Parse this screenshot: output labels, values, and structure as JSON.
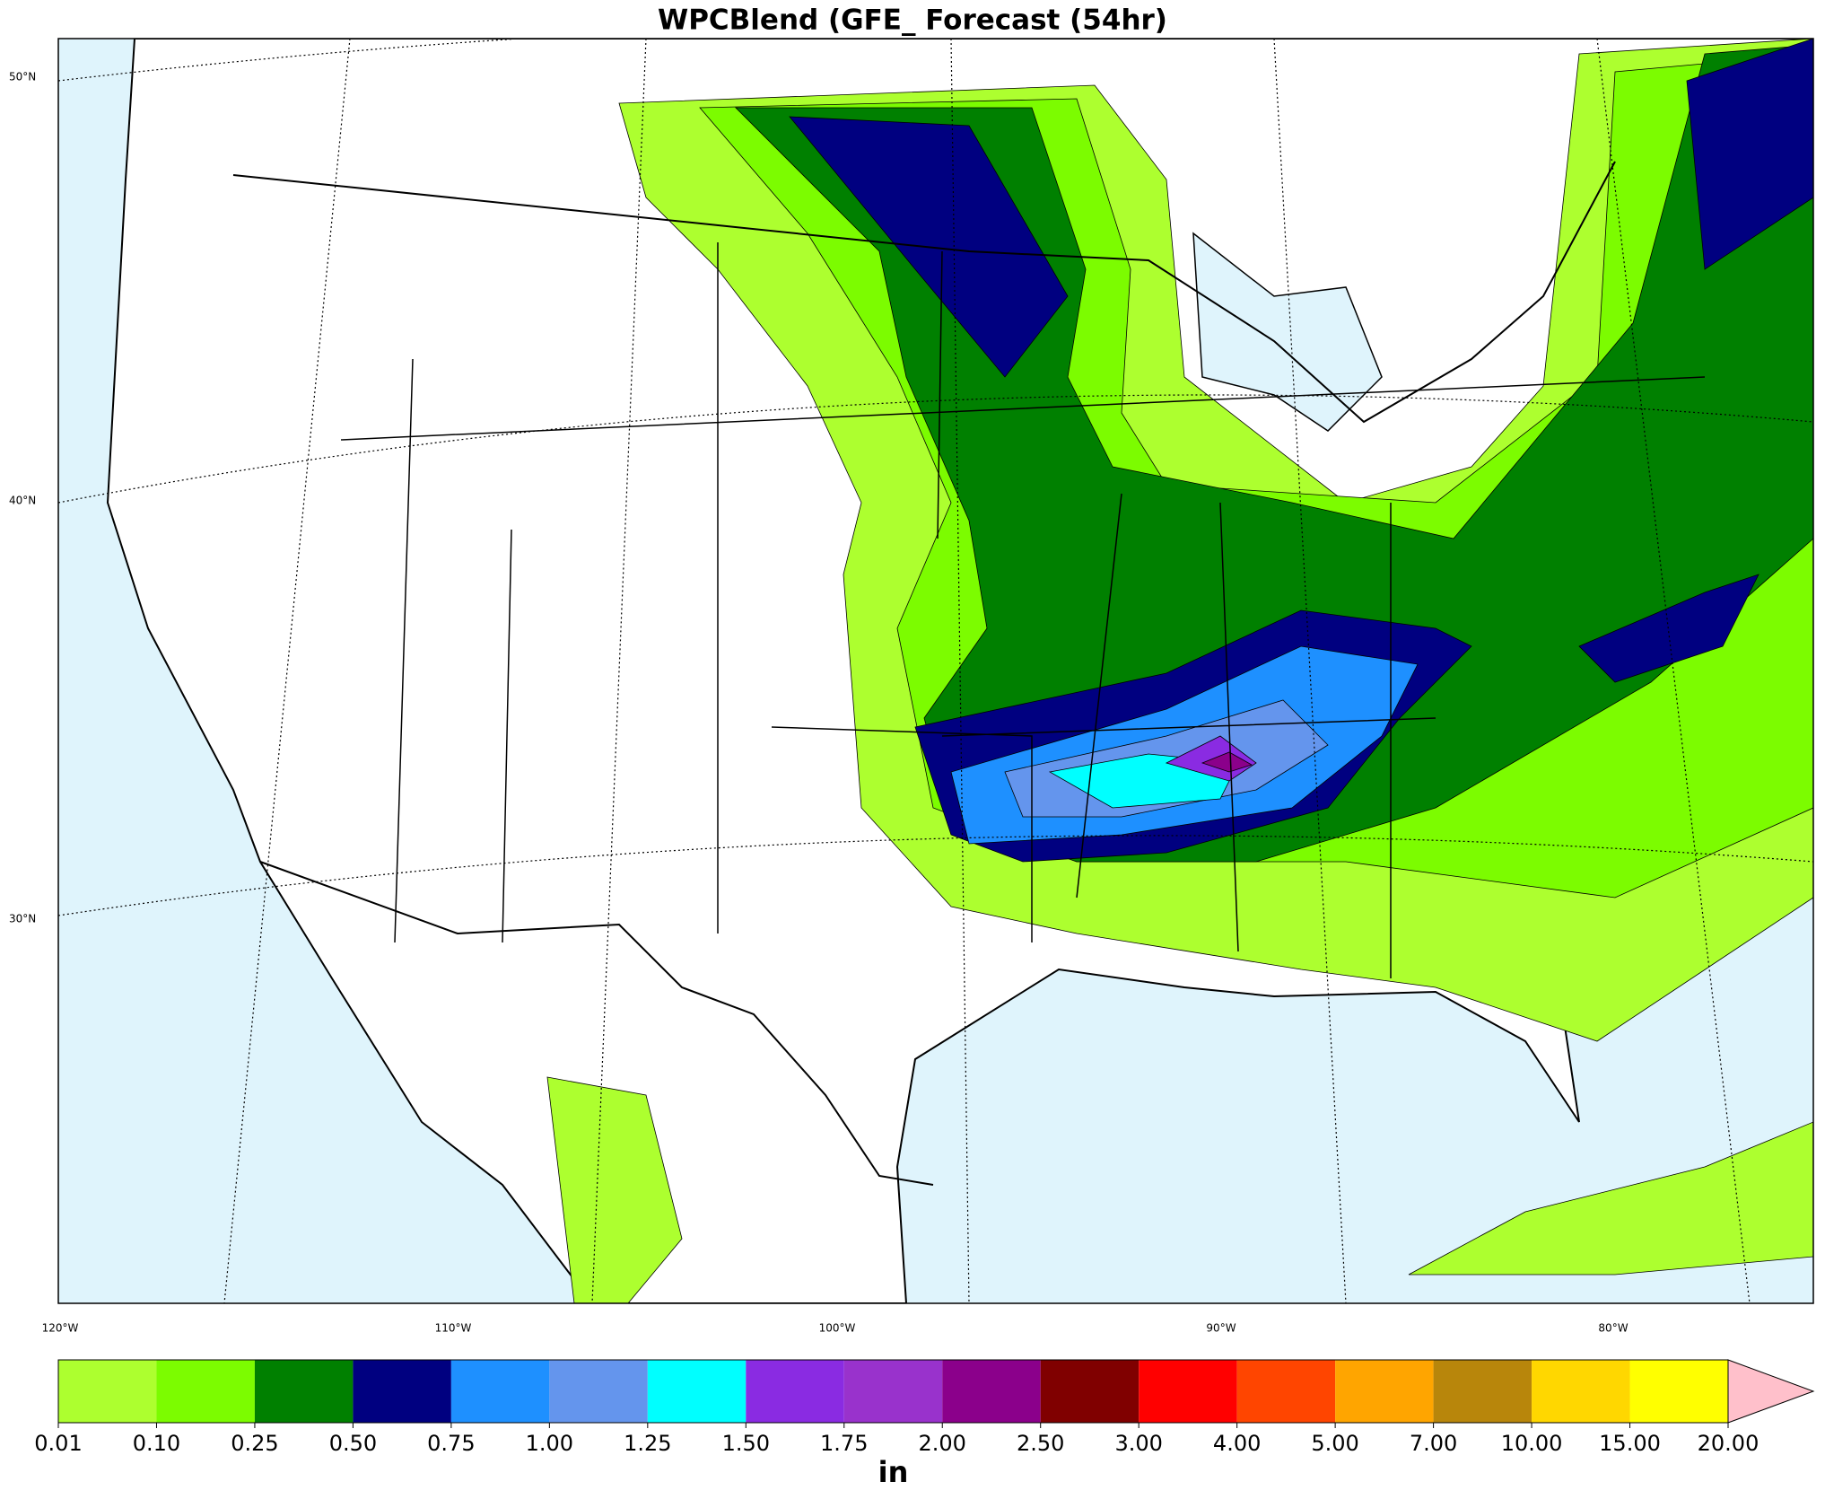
{
  "map": {
    "title": "WPCBlend (GFE_ Forecast (54hr)",
    "lat_labels": [
      "50°N",
      "40°N",
      "30°N"
    ],
    "lon_labels": [
      "120°W",
      "110°W",
      "100°W",
      "90°W",
      "80°W"
    ],
    "colorbar": {
      "levels": [
        0.01,
        {
          "value": 0.1,
          "label": "0.10"
        },
        {
          "value": 0.25,
          "label": "0.25"
        },
        {
          "value": 0.5,
          "label": "0.50"
        },
        {
          "value": 0.75,
          "label": "0.75"
        },
        {
          "value": 1,
          "label": "1.00"
        },
        {
          "value": 1.25,
          "label": "1.25"
        },
        {
          "value": 1.5,
          "label": "1.50"
        },
        {
          "value": 1.75,
          "label": "1.75"
        },
        {
          "value": 2,
          "label": "2.00"
        },
        {
          "value": 2.5,
          "label": "2.50"
        },
        {
          "value": 3,
          "label": "3.00"
        },
        {
          "value": 4,
          "label": "4.00"
        },
        {
          "value": 5,
          "label": "5.00"
        },
        {
          "value": 7,
          "label": "7.00"
        },
        {
          "value": 10,
          "label": "10.00"
        },
        {
          "value": 15,
          "label": "15.00"
        },
        {
          "value": 20,
          "label": "20.00"
        }
      ],
      "colors": [
        "#adff2f",
        "#7cfc00",
        "#008000",
        "#000080",
        "#1e90ff",
        "#6495ed",
        "#00ffff",
        "#8a2be2",
        "#9932cc",
        "#8b008b",
        "#800000",
        "#ff0000",
        "#ff4500",
        "#ffa500",
        "#b8860b",
        "#ffd700",
        "#ffff00"
      ],
      "extend_color": "#ffc0cb",
      "unit": "in"
    }
  }
}
